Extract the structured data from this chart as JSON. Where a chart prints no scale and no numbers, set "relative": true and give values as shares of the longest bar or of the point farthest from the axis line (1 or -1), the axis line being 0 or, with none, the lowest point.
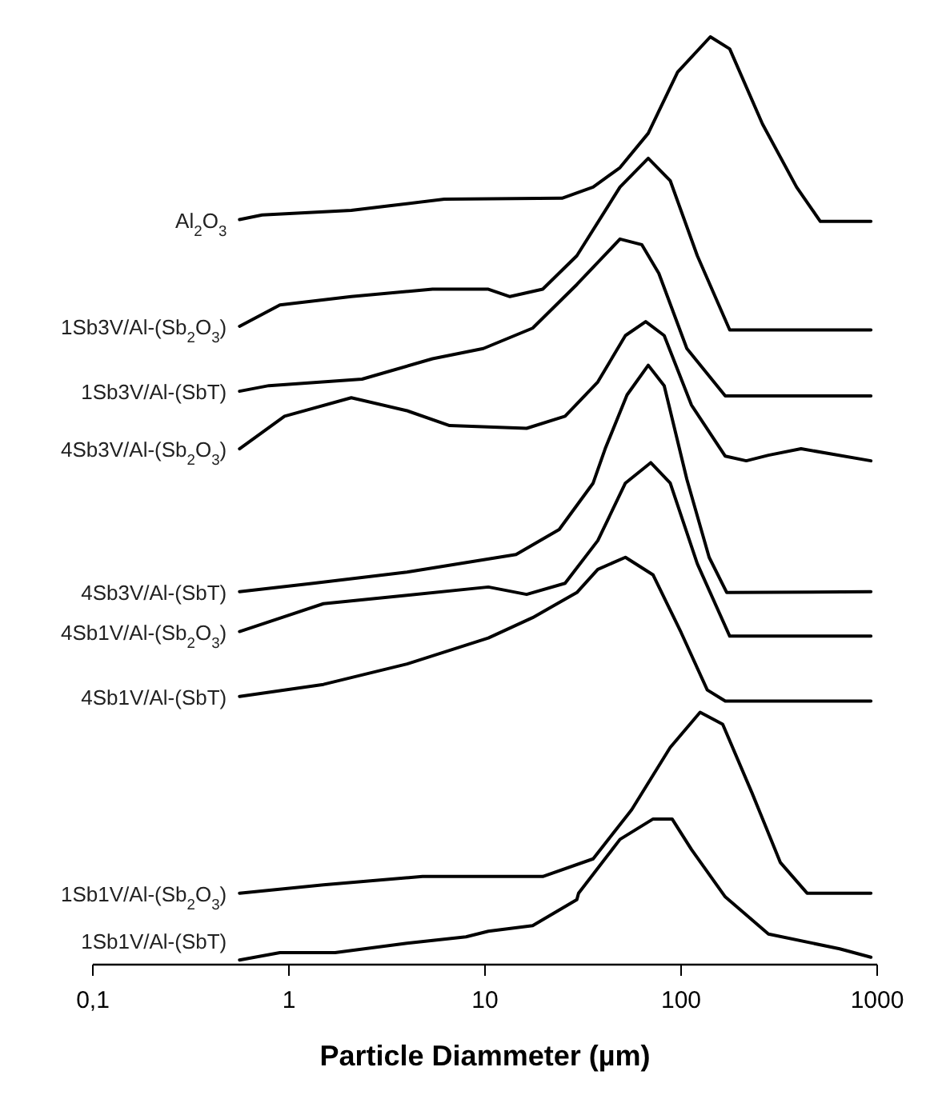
{
  "chart_data": {
    "type": "line",
    "relative": true,
    "xlabel": "Particle Diammeter (µm)",
    "log": "x",
    "xlim": [
      0.1,
      1000
    ],
    "xticks": [
      {
        "value": 0.1,
        "label": "0,1"
      },
      1,
      10,
      100,
      1000
    ],
    "grid": false,
    "line_style": "solid",
    "series": [
      {
        "name": "Al$_{2}$O$_{3}$",
        "color": "#000000",
        "x": [
          0.56,
          0.73,
          2.08,
          6.2,
          24.7,
          35.6,
          48.8,
          68,
          96,
          141,
          177,
          260,
          388,
          513,
          929
        ],
        "values": [
          0.803,
          0.808,
          0.813,
          0.825,
          0.826,
          0.838,
          0.859,
          0.896,
          0.962,
          1.0,
          0.987,
          0.906,
          0.838,
          0.801,
          0.801
        ]
      },
      {
        "name": "1Sb3V/Al-(Sb$_{2}$O$_{3}$)",
        "color": "#000000",
        "x": [
          0.56,
          0.9,
          2.08,
          5.4,
          10.4,
          13.4,
          19.7,
          29.4,
          48.8,
          68,
          88,
          121,
          177,
          929
        ],
        "values": [
          0.688,
          0.711,
          0.72,
          0.728,
          0.728,
          0.72,
          0.728,
          0.764,
          0.838,
          0.869,
          0.845,
          0.764,
          0.684,
          0.684
        ]
      },
      {
        "name": "1Sb3V/Al-(SbT)",
        "color": "#000000",
        "x": [
          0.56,
          0.79,
          2.36,
          5.4,
          9.8,
          17.5,
          29.4,
          48.8,
          63,
          77,
          107,
          168,
          929
        ],
        "values": [
          0.618,
          0.624,
          0.631,
          0.653,
          0.664,
          0.686,
          0.733,
          0.782,
          0.776,
          0.745,
          0.664,
          0.613,
          0.613
        ]
      },
      {
        "name": "4Sb3V/Al-(Sb$_{2}$O$_{3}$)",
        "color": "#000000",
        "x": [
          0.56,
          0.95,
          2.08,
          4.0,
          6.6,
          16.3,
          25.6,
          37.6,
          52,
          66,
          82,
          113,
          168,
          215,
          279,
          409,
          929
        ],
        "values": [
          0.556,
          0.591,
          0.611,
          0.597,
          0.581,
          0.578,
          0.591,
          0.628,
          0.678,
          0.693,
          0.678,
          0.603,
          0.548,
          0.543,
          0.549,
          0.556,
          0.543
        ]
      },
      {
        "name": "4Sb3V/Al-(SbT)",
        "color": "#000000",
        "x": [
          0.56,
          1.33,
          4.0,
          14.4,
          23.9,
          35.6,
          41,
          53,
          68,
          82,
          107,
          139,
          171,
          929
        ],
        "values": [
          0.402,
          0.411,
          0.423,
          0.442,
          0.469,
          0.519,
          0.556,
          0.614,
          0.646,
          0.624,
          0.523,
          0.439,
          0.401,
          0.402
        ]
      },
      {
        "name": "4Sb1V/Al-(Sb$_{2}$O$_{3}$)",
        "color": "#000000",
        "x": [
          0.56,
          1.5,
          4.0,
          10.4,
          16.3,
          25.6,
          37.6,
          52,
          70,
          88,
          121,
          177,
          929
        ],
        "values": [
          0.359,
          0.389,
          0.398,
          0.407,
          0.399,
          0.411,
          0.457,
          0.519,
          0.541,
          0.519,
          0.432,
          0.354,
          0.354
        ]
      },
      {
        "name": "4Sb1V/Al-(SbT)",
        "color": "#000000",
        "x": [
          0.56,
          1.5,
          4.0,
          10.4,
          17.5,
          29.4,
          37.6,
          52,
          72,
          100,
          136,
          168,
          929
        ],
        "values": [
          0.289,
          0.302,
          0.324,
          0.352,
          0.374,
          0.401,
          0.426,
          0.439,
          0.42,
          0.358,
          0.296,
          0.284,
          0.284
        ]
      },
      {
        "name": "1Sb1V/Al-(Sb$_{2}$O$_{3}$)",
        "color": "#000000",
        "x": [
          0.56,
          1.5,
          4.8,
          19.7,
          35.6,
          56,
          88,
          125,
          163,
          230,
          321,
          439,
          929
        ],
        "values": [
          0.077,
          0.086,
          0.095,
          0.095,
          0.114,
          0.167,
          0.234,
          0.272,
          0.259,
          0.185,
          0.11,
          0.077,
          0.077
        ]
      },
      {
        "name": "1Sb1V/Al-(SbT)",
        "color": "#000000",
        "x": [
          0.56,
          0.9,
          1.72,
          4.0,
          8.0,
          10.4,
          17.5,
          29.4,
          30,
          48.8,
          72,
          90,
          113,
          168,
          279,
          644,
          929
        ],
        "values": [
          0.005,
          0.013,
          0.013,
          0.023,
          0.03,
          0.036,
          0.042,
          0.07,
          0.077,
          0.135,
          0.157,
          0.157,
          0.124,
          0.073,
          0.033,
          0.017,
          0.008
        ]
      }
    ]
  }
}
